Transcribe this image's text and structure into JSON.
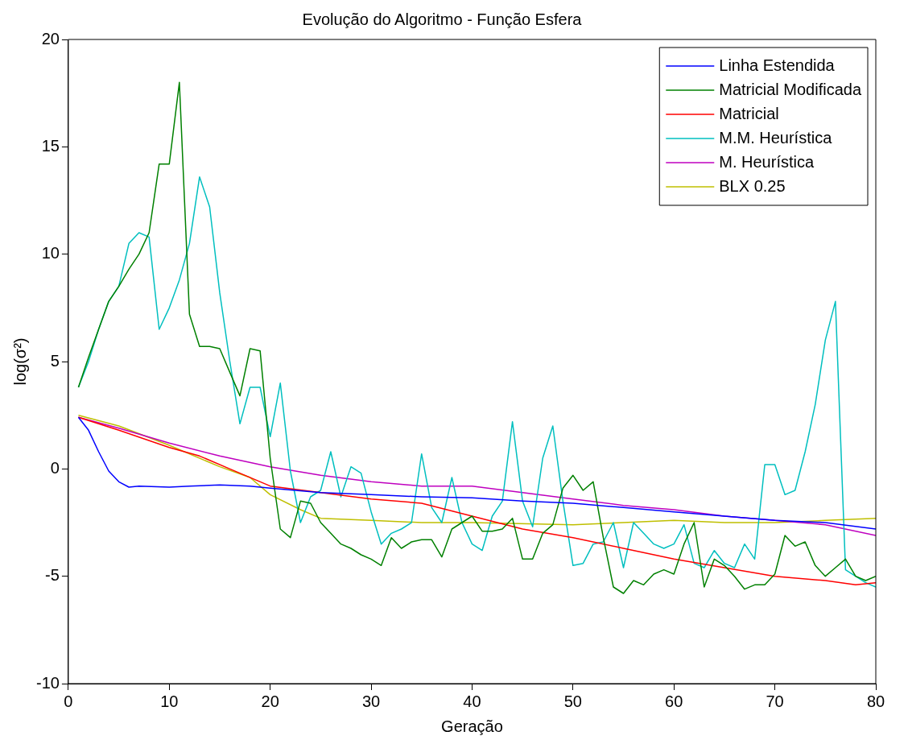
{
  "chart_data": {
    "type": "line",
    "title": "Evolução do Algoritmo - Função Esfera",
    "xlabel": "Geração",
    "ylabel": "log(σ²)",
    "xlim": [
      0,
      80
    ],
    "xticks": [
      0,
      10,
      20,
      30,
      40,
      50,
      60,
      70,
      80
    ],
    "ylim": [
      -10,
      20
    ],
    "yticks": [
      -10,
      -5,
      0,
      5,
      10,
      15,
      20
    ],
    "grid": false,
    "legend": "top right",
    "marker": "none",
    "line_style": "solid",
    "series": [
      {
        "name": "Linha Estendida",
        "color": "#0000ff",
        "x": [
          1,
          2,
          3,
          4,
          5,
          6,
          7,
          10,
          12,
          15,
          18,
          20,
          25,
          30,
          35,
          40,
          45,
          50,
          55,
          60,
          65,
          70,
          75,
          80
        ],
        "values": [
          2.4,
          1.8,
          0.8,
          -0.1,
          -0.6,
          -0.85,
          -0.8,
          -0.85,
          -0.8,
          -0.75,
          -0.8,
          -0.9,
          -1.1,
          -1.2,
          -1.3,
          -1.35,
          -1.5,
          -1.6,
          -1.8,
          -2.0,
          -2.2,
          -2.4,
          -2.5,
          -2.8
        ]
      },
      {
        "name": "Matricial Modificada",
        "color": "#008000",
        "x": [
          1,
          2,
          3,
          4,
          5,
          6,
          7,
          8,
          9,
          10,
          11,
          12,
          13,
          14,
          15,
          16,
          17,
          18,
          19,
          20,
          21,
          22,
          23,
          24,
          25,
          26,
          27,
          28,
          29,
          30,
          31,
          32,
          33,
          34,
          35,
          36,
          37,
          38,
          39,
          40,
          41,
          42,
          43,
          44,
          45,
          46,
          47,
          48,
          49,
          50,
          51,
          52,
          53,
          54,
          55,
          56,
          57,
          58,
          59,
          60,
          61,
          62,
          63,
          64,
          65,
          66,
          67,
          68,
          69,
          70,
          71,
          72,
          73,
          74,
          75,
          76,
          77,
          78,
          79,
          80
        ],
        "values": [
          3.8,
          5.2,
          6.5,
          7.8,
          8.5,
          9.3,
          10,
          11,
          14.2,
          14.2,
          18,
          7.2,
          5.7,
          5.7,
          5.6,
          4.5,
          3.4,
          5.6,
          5.5,
          0.5,
          -2.8,
          -3.2,
          -1.5,
          -1.6,
          -2.5,
          -3,
          -3.5,
          -3.7,
          -4,
          -4.2,
          -4.5,
          -3.2,
          -3.7,
          -3.4,
          -3.3,
          -3.3,
          -4.1,
          -2.8,
          -2.5,
          -2.2,
          -2.9,
          -2.9,
          -2.8,
          -2.3,
          -4.2,
          -4.2,
          -3,
          -2.6,
          -0.9,
          -0.3,
          -1,
          -0.6,
          -3.2,
          -5.5,
          -5.8,
          -5.2,
          -5.4,
          -4.9,
          -4.7,
          -4.9,
          -3.5,
          -2.5,
          -5.5,
          -4.2,
          -4.5,
          -5,
          -5.6,
          -5.4,
          -5.4,
          -4.9,
          -3.1,
          -3.6,
          -3.4,
          -4.5,
          -5,
          -4.6,
          -4.2,
          -5,
          -5.2,
          -5
        ]
      },
      {
        "name": "Matricial",
        "color": "#ff0000",
        "x": [
          1,
          5,
          10,
          13,
          16,
          20,
          25,
          30,
          35,
          40,
          45,
          50,
          55,
          60,
          65,
          70,
          75,
          78,
          80
        ],
        "values": [
          2.4,
          1.8,
          1.0,
          0.6,
          0,
          -0.8,
          -1.1,
          -1.4,
          -1.6,
          -2.2,
          -2.8,
          -3.2,
          -3.7,
          -4.2,
          -4.6,
          -5.0,
          -5.2,
          -5.4,
          -5.3
        ]
      },
      {
        "name": "M.M. Heurística",
        "color": "#00bfbf",
        "x": [
          1,
          2,
          3,
          4,
          5,
          6,
          7,
          8,
          9,
          10,
          11,
          12,
          13,
          14,
          15,
          16,
          17,
          18,
          19,
          20,
          21,
          22,
          23,
          24,
          25,
          26,
          27,
          28,
          29,
          30,
          31,
          32,
          33,
          34,
          35,
          36,
          37,
          38,
          39,
          40,
          41,
          42,
          43,
          44,
          45,
          46,
          47,
          48,
          49,
          50,
          51,
          52,
          53,
          54,
          55,
          56,
          57,
          58,
          59,
          60,
          61,
          62,
          63,
          64,
          65,
          66,
          67,
          68,
          69,
          70,
          71,
          72,
          73,
          74,
          75,
          76,
          77,
          78,
          79,
          80
        ],
        "values": [
          3.8,
          5,
          6.5,
          7.8,
          8.5,
          10.5,
          11,
          10.8,
          6.5,
          7.5,
          8.8,
          10.5,
          13.6,
          12.2,
          8.2,
          5,
          2.1,
          3.8,
          3.8,
          1.5,
          4,
          -0.1,
          -2.5,
          -1.3,
          -1,
          0.8,
          -1.3,
          0.1,
          -0.2,
          -2,
          -3.5,
          -3,
          -2.8,
          -2.5,
          0.7,
          -1.8,
          -2.5,
          -0.4,
          -2.5,
          -3.5,
          -3.8,
          -2.2,
          -1.5,
          2.2,
          -1.5,
          -2.7,
          0.5,
          2,
          -1.5,
          -4.5,
          -4.4,
          -3.5,
          -3.4,
          -2.5,
          -4.6,
          -2.5,
          -3,
          -3.5,
          -3.7,
          -3.5,
          -2.6,
          -4.4,
          -4.6,
          -3.8,
          -4.4,
          -4.6,
          -3.5,
          -4.2,
          0.2,
          0.2,
          -1.2,
          -1,
          0.8,
          3,
          6,
          7.8,
          -4.7,
          -5,
          -5.3,
          -5.5
        ]
      },
      {
        "name": "M. Heurística",
        "color": "#bf00bf",
        "x": [
          1,
          5,
          10,
          15,
          20,
          25,
          30,
          35,
          40,
          45,
          50,
          55,
          60,
          65,
          70,
          75,
          80
        ],
        "values": [
          2.4,
          1.9,
          1.2,
          0.6,
          0.1,
          -0.3,
          -0.6,
          -0.8,
          -0.8,
          -1.1,
          -1.4,
          -1.7,
          -1.9,
          -2.2,
          -2.4,
          -2.6,
          -3.1
        ]
      },
      {
        "name": "BLX 0.25",
        "color": "#bfbf00",
        "x": [
          1,
          5,
          10,
          15,
          18,
          20,
          23,
          25,
          30,
          35,
          40,
          50,
          55,
          60,
          65,
          70,
          75,
          80
        ],
        "values": [
          2.5,
          2.0,
          1.1,
          0.1,
          -0.4,
          -1.2,
          -1.9,
          -2.3,
          -2.4,
          -2.5,
          -2.5,
          -2.6,
          -2.5,
          -2.4,
          -2.5,
          -2.5,
          -2.4,
          -2.3
        ]
      }
    ]
  }
}
